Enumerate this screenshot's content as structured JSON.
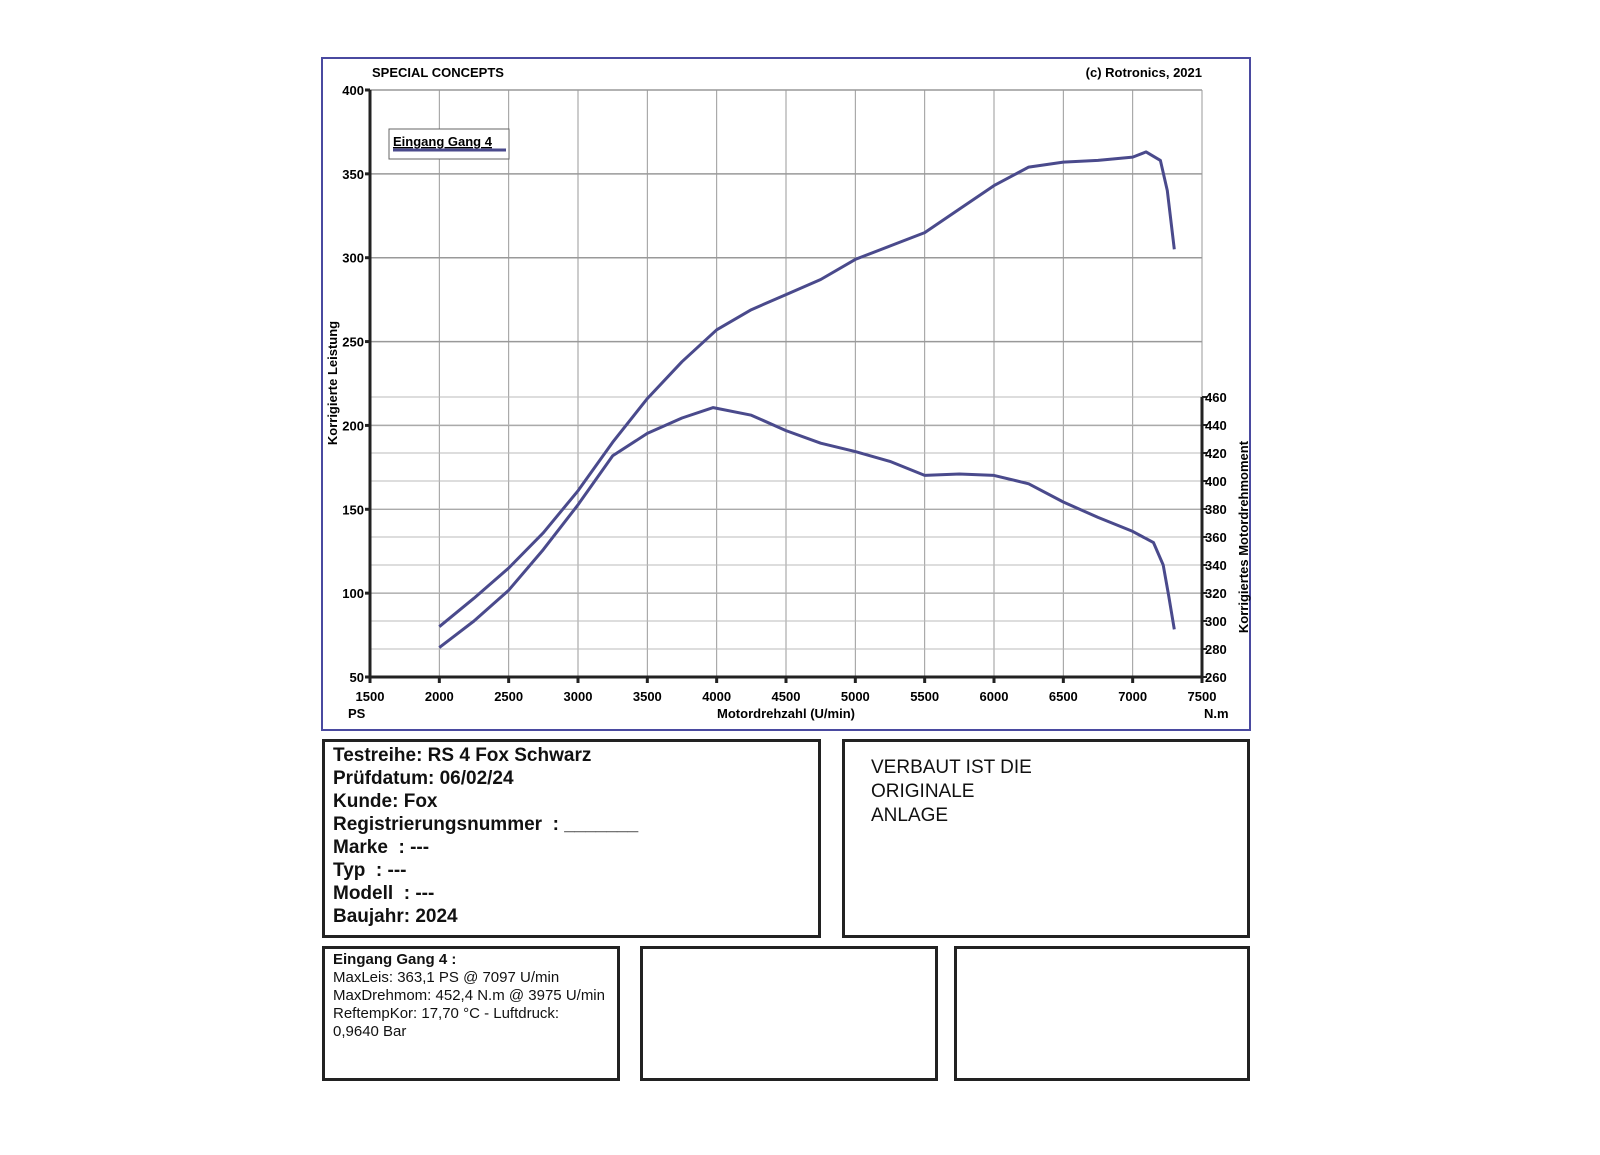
{
  "header": {
    "left": "SPECIAL CONCEPTS",
    "right": "(c) Rotronics, 2021"
  },
  "chart_data": {
    "type": "line",
    "xlabel": "Motordrehzahl (U/min)",
    "ylabel": "Korrigierte Leistung",
    "y2label": "Korrigiertes Motordrehmoment",
    "xunit": "PS",
    "y2unit": "N.m",
    "xlim": [
      1500,
      7500
    ],
    "ylim": [
      50,
      400
    ],
    "y2lim": [
      260,
      460
    ],
    "xticks": [
      1500,
      2000,
      2500,
      3000,
      3500,
      4000,
      4500,
      5000,
      5500,
      6000,
      6500,
      7000,
      7500
    ],
    "yticks": [
      50,
      100,
      150,
      200,
      250,
      300,
      350,
      400
    ],
    "y2ticks": [
      260,
      280,
      300,
      320,
      340,
      360,
      380,
      400,
      420,
      440,
      460
    ],
    "grid": true,
    "legend": {
      "label": "Eingang Gang 4",
      "placement": "top-left"
    },
    "color": "#4a4a8c",
    "series": [
      {
        "name": "Leistung (PS)",
        "axis": "left",
        "x": [
          2000,
          2250,
          2500,
          2750,
          3000,
          3250,
          3500,
          3750,
          4000,
          4250,
          4500,
          4750,
          5000,
          5250,
          5500,
          5750,
          6000,
          6250,
          6500,
          6750,
          7000,
          7097,
          7200,
          7250,
          7300
        ],
        "y": [
          80,
          97,
          115,
          136,
          161,
          190,
          216,
          238,
          257,
          269,
          278,
          287,
          299,
          307,
          315,
          329,
          343,
          354,
          357,
          358,
          360,
          363.1,
          358,
          340,
          305
        ]
      },
      {
        "name": "Drehmoment (N.m)",
        "axis": "right",
        "x": [
          2000,
          2250,
          2500,
          2750,
          3000,
          3250,
          3500,
          3750,
          3975,
          4250,
          4500,
          4750,
          5000,
          5250,
          5500,
          5750,
          6000,
          6250,
          6500,
          6750,
          7000,
          7150,
          7220,
          7260,
          7300
        ],
        "y": [
          281,
          300,
          322,
          351,
          383,
          418,
          434,
          445,
          452.4,
          447,
          436,
          427,
          421,
          414,
          404,
          405,
          404,
          398,
          385,
          374,
          364,
          356,
          340,
          318,
          294
        ]
      }
    ]
  },
  "info": {
    "lines": [
      "Testreihe: RS 4 Fox Schwarz",
      "Prüfdatum: 06/02/24",
      "Kunde: Fox",
      "Registrierungsnummer  : _______",
      "Marke  : ---",
      "Typ  : ---",
      "Modell  : ---",
      "Baujahr: 2024"
    ]
  },
  "note": {
    "lines": [
      "VERBAUT IST DIE",
      "ORIGINALE",
      "ANLAGE"
    ]
  },
  "summary": {
    "title": "Eingang Gang 4  :",
    "lines": [
      "MaxLeis: 363,1 PS @ 7097 U/min",
      "MaxDrehmom: 452,4 N.m @ 3975 U/min",
      "ReftempKor: 17,70 °C - Luftdruck: 0,9640 Bar"
    ]
  }
}
